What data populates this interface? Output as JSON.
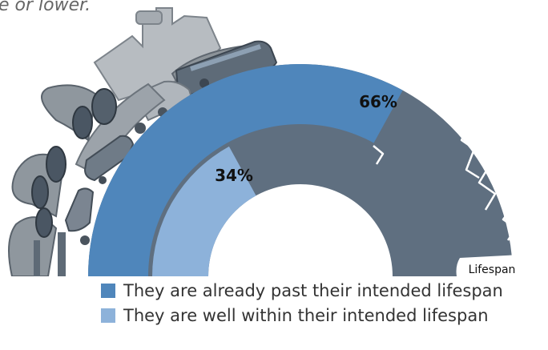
{
  "subtitle": "e or lower.",
  "chart_data": {
    "type": "pie",
    "title": "",
    "series": [
      {
        "name": "They are already past their intended lifespan",
        "value": 66,
        "label": "66%",
        "color": "#4f86bb"
      },
      {
        "name": "They are well within their intended lifespan",
        "value": 34,
        "label": "34%",
        "color": "#8db2da"
      }
    ],
    "annotations": [
      "Lifespan"
    ],
    "legend_position": "bottom-right"
  },
  "colors": {
    "track": "#5f6f80",
    "infrastructure_illustration": "#9aa1a8"
  }
}
